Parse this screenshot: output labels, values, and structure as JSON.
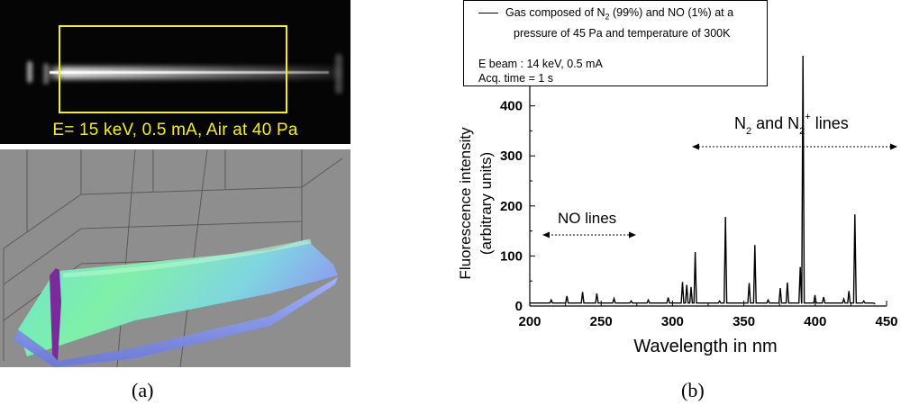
{
  "panel_a": {
    "image_caption": "E= 15 keV, 0.5 mA, Air at 40 Pa",
    "label": "(a)"
  },
  "panel_b": {
    "label": "(b)"
  },
  "colors": {
    "roi_yellow": "#f4ef1c",
    "surface_purple": "#7a2a9a",
    "surface_green": "#7cf0b0",
    "surface_blue": "#6f7fe0",
    "background_gray": "#8e8e8e"
  },
  "chart_data": {
    "type": "line",
    "xlabel": "Wavelength in nm",
    "ylabel_line1": "Fluorescence intensity",
    "ylabel_line2": "(arbitrary units)",
    "xlim": [
      200,
      450
    ],
    "ylim": [
      0,
      500
    ],
    "xticks": [
      200,
      250,
      300,
      350,
      400,
      450
    ],
    "yticks": [
      0,
      100,
      200,
      300,
      400
    ],
    "legend": {
      "series_line1_a": "Gas composed of N",
      "series_line1_sub": "2",
      "series_line1_b": " (99%) and NO (1%) at a",
      "series_line2": "pressure of 45 Pa and temperature of 300K",
      "info1": "E beam : 14 keV, 0.5 mA",
      "info2": "Acq. time = 1 s"
    },
    "annotations": {
      "no_lines": "NO lines",
      "n2_a": "N",
      "n2_sub": "2",
      "n2_and": " and N",
      "n2plus_sub": "2",
      "n2plus_sup": "+",
      "n2_lines": " lines"
    },
    "series": [
      {
        "baseline": 6,
        "peaks": [
          {
            "x": 215,
            "y": 12
          },
          {
            "x": 226,
            "y": 20
          },
          {
            "x": 237,
            "y": 28
          },
          {
            "x": 247,
            "y": 25
          },
          {
            "x": 259,
            "y": 15
          },
          {
            "x": 271,
            "y": 10
          },
          {
            "x": 283,
            "y": 12
          },
          {
            "x": 297,
            "y": 17
          },
          {
            "x": 307,
            "y": 48
          },
          {
            "x": 310,
            "y": 42
          },
          {
            "x": 313,
            "y": 38
          },
          {
            "x": 315.9,
            "y": 108
          },
          {
            "x": 333,
            "y": 10
          },
          {
            "x": 337.1,
            "y": 178
          },
          {
            "x": 353.7,
            "y": 46
          },
          {
            "x": 357.7,
            "y": 122
          },
          {
            "x": 367,
            "y": 12
          },
          {
            "x": 375.5,
            "y": 36
          },
          {
            "x": 380.5,
            "y": 47
          },
          {
            "x": 389.5,
            "y": 78
          },
          {
            "x": 391.4,
            "y": 500
          },
          {
            "x": 399.8,
            "y": 22
          },
          {
            "x": 405.9,
            "y": 18
          },
          {
            "x": 420,
            "y": 14
          },
          {
            "x": 423.6,
            "y": 30
          },
          {
            "x": 427.8,
            "y": 183
          },
          {
            "x": 434,
            "y": 10
          }
        ]
      }
    ]
  }
}
